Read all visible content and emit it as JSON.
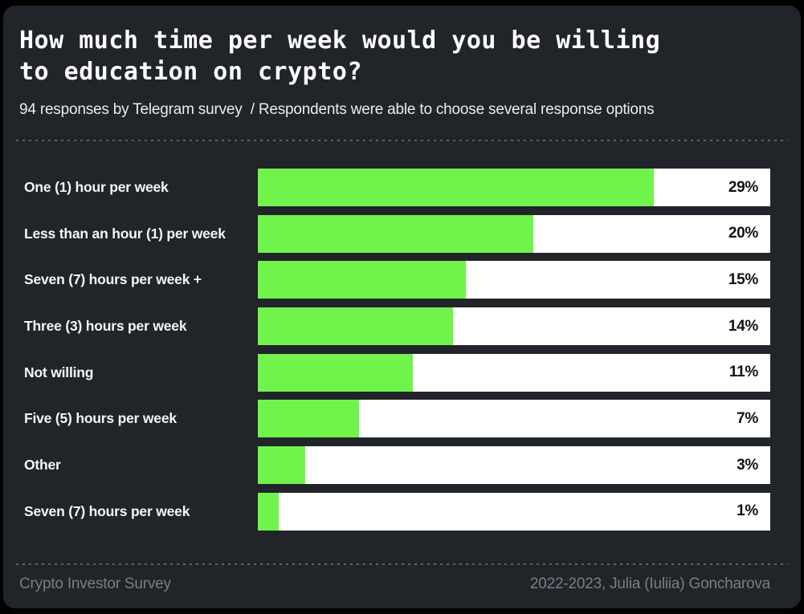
{
  "header": {
    "title_line1": "How much time per week would you be willing",
    "title_line2": "to education on crypto?",
    "subtitle": "94 responses by Telegram survey  / Respondents were able to choose several response options"
  },
  "chart_data": {
    "type": "bar",
    "orientation": "horizontal",
    "title": "How much time per week would you be willing to education on crypto?",
    "subtitle": "94 responses by Telegram survey / Respondents were able to choose several response options",
    "xlabel": "",
    "ylabel": "",
    "unit": "%",
    "total_responses": 94,
    "categories": [
      "One (1) hour per week",
      "Less than an hour (1) per week",
      "Seven (7) hours per week +",
      "Three (3) hours per week",
      "Not willing",
      "Five (5) hours per week",
      "Other",
      "Seven (7) hours per week"
    ],
    "values": [
      29,
      20,
      15,
      14,
      11,
      7,
      3,
      1
    ],
    "value_labels": [
      "29%",
      "20%",
      "15%",
      "14%",
      "11%",
      "7%",
      "3%",
      "1%"
    ],
    "bar_color": "#70f34a",
    "track_color": "#ffffff",
    "grid": false,
    "legend": false
  },
  "footer": {
    "left": "Crypto Investor Survey",
    "right": "2022-2023, Julia (Iuliia) Goncharova"
  },
  "colors": {
    "page_background": "#000000",
    "card_background": "#212429",
    "accent_green": "#70f34a",
    "track_white": "#ffffff",
    "title_text": "#ffffff",
    "subtitle_text": "#e9ebee",
    "label_text": "#f4f5f7",
    "percent_text": "#121212",
    "footer_text": "#797e85",
    "rule_dots": "#5d6268"
  }
}
